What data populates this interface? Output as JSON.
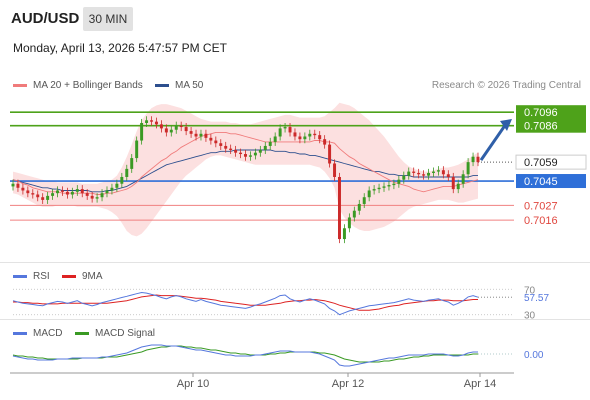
{
  "header": {
    "pair": "AUD/USD",
    "timeframe": "30 MIN",
    "datetime": "Monday, April 13, 2026 5:47:57 PM CET"
  },
  "legends": {
    "ma20": "MA 20 + Bollinger Bands",
    "ma50": "MA 50",
    "credit": "Research © 2026 Trading Central",
    "rsi": "RSI",
    "rsi_ma": "9MA",
    "macd": "MACD",
    "macd_signal": "MACD Signal"
  },
  "colors": {
    "ma20": "#f07b7b",
    "ma50": "#2d4f8e",
    "band_fill": "#fbd6d6",
    "candle_up": "#3a9a24",
    "candle_down": "#cc2a2a",
    "resistance": "#4ea21a",
    "pivot": "#2e6fd8",
    "support": "#f08080",
    "rsi": "#5577dd",
    "rsi_ma": "#dd2222",
    "macd": "#5577dd",
    "macd_signal": "#3a9a24",
    "arrow": "#2f5fa8"
  },
  "chart_data": [
    {
      "type": "candlestick",
      "panel": "price",
      "ylim": [
        0.6985,
        0.7108
      ],
      "x_ticks": [
        "Apr 10",
        "Apr 12",
        "Apr 14"
      ],
      "levels": [
        {
          "label": "0.7096",
          "value": 0.7096,
          "kind": "resistance"
        },
        {
          "label": "0.7086",
          "value": 0.7086,
          "kind": "resistance"
        },
        {
          "label": "0.7059",
          "value": 0.7059,
          "kind": "last"
        },
        {
          "label": "0.7045",
          "value": 0.7045,
          "kind": "pivot"
        },
        {
          "label": "0.7027",
          "value": 0.7027,
          "kind": "support"
        },
        {
          "label": "0.7016",
          "value": 0.7016,
          "kind": "support"
        }
      ],
      "close": [
        0.7043,
        0.704,
        0.7038,
        0.7036,
        0.7035,
        0.7033,
        0.7031,
        0.7034,
        0.7036,
        0.7038,
        0.7037,
        0.7035,
        0.7037,
        0.7039,
        0.7036,
        0.7034,
        0.7032,
        0.7033,
        0.7036,
        0.7038,
        0.704,
        0.7043,
        0.7048,
        0.7054,
        0.7062,
        0.7075,
        0.7088,
        0.709,
        0.7089,
        0.7087,
        0.7084,
        0.7081,
        0.7083,
        0.7086,
        0.7085,
        0.7082,
        0.708,
        0.7078,
        0.708,
        0.7077,
        0.7075,
        0.7073,
        0.7071,
        0.7069,
        0.7068,
        0.7066,
        0.7065,
        0.7063,
        0.7064,
        0.7066,
        0.7068,
        0.7071,
        0.7074,
        0.7078,
        0.7084,
        0.7085,
        0.7081,
        0.7078,
        0.7076,
        0.7078,
        0.708,
        0.7079,
        0.7076,
        0.7072,
        0.7058,
        0.7048,
        0.7002,
        0.701,
        0.7018,
        0.7023,
        0.7028,
        0.7033,
        0.7038,
        0.7039,
        0.704,
        0.7041,
        0.7042,
        0.7043,
        0.7046,
        0.7049,
        0.7052,
        0.7051,
        0.705,
        0.7049,
        0.7051,
        0.7052,
        0.7053,
        0.705,
        0.7048,
        0.7039,
        0.7043,
        0.705,
        0.7059,
        0.7063,
        0.7059
      ],
      "ma20": [
        0.7046,
        0.7045,
        0.7043,
        0.7042,
        0.704,
        0.7039,
        0.7038,
        0.7037,
        0.7037,
        0.7037,
        0.7036,
        0.7036,
        0.7036,
        0.7036,
        0.7036,
        0.7036,
        0.7036,
        0.7035,
        0.7035,
        0.7036,
        0.7036,
        0.7037,
        0.7038,
        0.7039,
        0.7041,
        0.7044,
        0.7048,
        0.7051,
        0.7054,
        0.7057,
        0.706,
        0.7062,
        0.7065,
        0.7067,
        0.707,
        0.7072,
        0.7074,
        0.7076,
        0.7078,
        0.7079,
        0.708,
        0.7081,
        0.7081,
        0.7081,
        0.708,
        0.708,
        0.7079,
        0.7078,
        0.7077,
        0.7076,
        0.7075,
        0.7074,
        0.7074,
        0.7074,
        0.7074,
        0.7074,
        0.7074,
        0.7074,
        0.7074,
        0.7074,
        0.7074,
        0.7075,
        0.7075,
        0.7074,
        0.7074,
        0.7073,
        0.7069,
        0.7066,
        0.7063,
        0.7061,
        0.7058,
        0.7056,
        0.7054,
        0.7052,
        0.705,
        0.7048,
        0.7046,
        0.7044,
        0.7043,
        0.7042,
        0.7041,
        0.7039,
        0.7038,
        0.7037,
        0.7038,
        0.7039,
        0.704,
        0.7041,
        0.7041,
        0.7041,
        0.7042,
        0.7043,
        0.7044,
        0.7045,
        0.7046
      ],
      "bb_upper": [
        0.7052,
        0.7051,
        0.705,
        0.7049,
        0.7048,
        0.7047,
        0.7046,
        0.7045,
        0.7045,
        0.7044,
        0.7044,
        0.7044,
        0.7044,
        0.7044,
        0.7043,
        0.7043,
        0.7043,
        0.7043,
        0.7044,
        0.7045,
        0.7046,
        0.7049,
        0.7055,
        0.7063,
        0.7072,
        0.7082,
        0.709,
        0.7095,
        0.7099,
        0.7101,
        0.7102,
        0.7102,
        0.7101,
        0.71,
        0.7099,
        0.7097,
        0.7095,
        0.7093,
        0.7091,
        0.709,
        0.7089,
        0.7089,
        0.7089,
        0.7089,
        0.7088,
        0.7088,
        0.7087,
        0.7087,
        0.7087,
        0.7088,
        0.7089,
        0.709,
        0.7091,
        0.7092,
        0.7093,
        0.7094,
        0.7094,
        0.7093,
        0.7092,
        0.7092,
        0.7092,
        0.7092,
        0.7092,
        0.7093,
        0.7096,
        0.7099,
        0.7103,
        0.7102,
        0.7101,
        0.7099,
        0.7096,
        0.7093,
        0.709,
        0.7086,
        0.7082,
        0.7078,
        0.7073,
        0.7068,
        0.7063,
        0.7059,
        0.7056,
        0.7054,
        0.7053,
        0.7052,
        0.7052,
        0.7053,
        0.7054,
        0.7055,
        0.7055,
        0.7056,
        0.7057,
        0.7059,
        0.7061,
        0.7064,
        0.7066
      ],
      "bb_lower": [
        0.7036,
        0.7035,
        0.7033,
        0.7031,
        0.7029,
        0.7027,
        0.7026,
        0.7026,
        0.7026,
        0.7027,
        0.7027,
        0.7027,
        0.7027,
        0.7026,
        0.7026,
        0.7026,
        0.7026,
        0.7026,
        0.7025,
        0.7024,
        0.7022,
        0.7019,
        0.7014,
        0.7008,
        0.7005,
        0.7004,
        0.7006,
        0.701,
        0.7015,
        0.702,
        0.7025,
        0.703,
        0.7035,
        0.704,
        0.7045,
        0.7049,
        0.7052,
        0.7055,
        0.7058,
        0.7061,
        0.7063,
        0.7064,
        0.7064,
        0.7063,
        0.7062,
        0.7061,
        0.706,
        0.7059,
        0.7058,
        0.7057,
        0.7057,
        0.7057,
        0.7057,
        0.7057,
        0.7057,
        0.7057,
        0.7057,
        0.7057,
        0.7057,
        0.7057,
        0.7057,
        0.7056,
        0.7055,
        0.7052,
        0.7047,
        0.704,
        0.7024,
        0.7018,
        0.7014,
        0.7011,
        0.7009,
        0.7008,
        0.7008,
        0.7009,
        0.701,
        0.7011,
        0.7013,
        0.7015,
        0.7018,
        0.7021,
        0.7024,
        0.7026,
        0.7027,
        0.7028,
        0.7029,
        0.703,
        0.7031,
        0.7031,
        0.7031,
        0.703,
        0.7029,
        0.7029,
        0.703,
        0.7031,
        0.7032
      ],
      "ma50": [
        0.7046,
        0.7045,
        0.7044,
        0.7043,
        0.7042,
        0.7041,
        0.704,
        0.704,
        0.7039,
        0.7039,
        0.7038,
        0.7038,
        0.7038,
        0.7038,
        0.7038,
        0.7038,
        0.7037,
        0.7037,
        0.7037,
        0.7038,
        0.7038,
        0.7039,
        0.704,
        0.7041,
        0.7043,
        0.7045,
        0.7047,
        0.7049,
        0.7051,
        0.7053,
        0.7055,
        0.7057,
        0.7058,
        0.7059,
        0.706,
        0.7061,
        0.7062,
        0.7063,
        0.7064,
        0.7065,
        0.7066,
        0.7066,
        0.7067,
        0.7067,
        0.7067,
        0.7068,
        0.7068,
        0.7068,
        0.7068,
        0.7068,
        0.7068,
        0.7068,
        0.7068,
        0.7067,
        0.7067,
        0.7067,
        0.7066,
        0.7066,
        0.7065,
        0.7065,
        0.7064,
        0.7064,
        0.7063,
        0.7062,
        0.7061,
        0.706,
        0.7059,
        0.7058,
        0.7057,
        0.7056,
        0.7055,
        0.7054,
        0.7053,
        0.7052,
        0.7052,
        0.7051,
        0.705,
        0.705,
        0.7049,
        0.7049,
        0.7049,
        0.7048,
        0.7048,
        0.7048,
        0.7048,
        0.7048,
        0.7048,
        0.7048,
        0.7048,
        0.7048,
        0.7048,
        0.7048,
        0.7048,
        0.7049,
        0.7049
      ]
    },
    {
      "type": "line",
      "panel": "rsi",
      "ylim": [
        28,
        72
      ],
      "y_ticks": [
        "70",
        "30"
      ],
      "last_label": "57.57",
      "series": [
        {
          "name": "RSI",
          "values": [
            52,
            50,
            48,
            47,
            46,
            45,
            44,
            47,
            49,
            51,
            50,
            48,
            50,
            52,
            48,
            46,
            44,
            46,
            49,
            51,
            53,
            55,
            57,
            59,
            61,
            63,
            65,
            64,
            62,
            60,
            57,
            55,
            58,
            60,
            58,
            55,
            53,
            51,
            54,
            51,
            49,
            47,
            45,
            44,
            43,
            42,
            41,
            40,
            42,
            45,
            47,
            50,
            53,
            56,
            60,
            61,
            55,
            52,
            50,
            53,
            55,
            53,
            50,
            47,
            40,
            36,
            30,
            33,
            36,
            38,
            40,
            42,
            44,
            45,
            46,
            47,
            48,
            49,
            51,
            53,
            55,
            53,
            52,
            51,
            53,
            54,
            55,
            52,
            50,
            45,
            48,
            52,
            58,
            60,
            57.57
          ]
        },
        {
          "name": "9MA",
          "values": [
            50,
            50,
            49,
            49,
            48,
            48,
            47,
            47,
            47,
            47,
            48,
            48,
            48,
            48,
            48,
            48,
            48,
            48,
            48,
            48,
            49,
            50,
            51,
            52,
            54,
            56,
            58,
            59,
            60,
            61,
            60,
            60,
            60,
            60,
            59,
            58,
            57,
            56,
            56,
            55,
            54,
            53,
            51,
            50,
            49,
            48,
            47,
            46,
            45,
            45,
            45,
            45,
            46,
            47,
            48,
            50,
            51,
            52,
            52,
            53,
            53,
            54,
            53,
            52,
            50,
            48,
            45,
            43,
            41,
            39,
            37,
            37,
            37,
            38,
            39,
            41,
            43,
            44,
            45,
            47,
            48,
            49,
            50,
            51,
            52,
            52,
            53,
            53,
            53,
            52,
            52,
            52,
            53,
            54,
            54
          ]
        }
      ]
    },
    {
      "type": "line",
      "panel": "macd",
      "ylim": [
        -0.0016,
        0.0012
      ],
      "last_label": "0.00",
      "series": [
        {
          "name": "MACD",
          "values": [
            -0.0002,
            -0.0003,
            -0.0004,
            -0.0005,
            -0.0005,
            -0.0006,
            -0.0006,
            -0.0006,
            -0.0006,
            -0.0005,
            -0.0005,
            -0.0005,
            -0.0004,
            -0.0004,
            -0.0004,
            -0.0004,
            -0.0004,
            -0.0004,
            -0.0003,
            -0.0003,
            -0.0002,
            -0.0001,
            0.0,
            0.0001,
            0.0003,
            0.0005,
            0.0007,
            0.0008,
            0.0009,
            0.0009,
            0.0009,
            0.0008,
            0.0008,
            0.0008,
            0.0007,
            0.0006,
            0.0005,
            0.0004,
            0.0004,
            0.0003,
            0.0002,
            0.0001,
            0.0,
            -0.0001,
            -0.0001,
            -0.0002,
            -0.0002,
            -0.0002,
            -0.0002,
            -0.0001,
            -0.0001,
            0.0,
            0.0001,
            0.0002,
            0.0003,
            0.0003,
            0.0003,
            0.0002,
            0.0002,
            0.0002,
            0.0002,
            0.0001,
            0.0,
            -0.0002,
            -0.0004,
            -0.0006,
            -0.0011,
            -0.0012,
            -0.0012,
            -0.0011,
            -0.001,
            -0.0009,
            -0.0008,
            -0.0007,
            -0.0006,
            -0.0005,
            -0.0004,
            -0.0004,
            -0.0003,
            -0.0002,
            -0.0001,
            -0.0001,
            -0.0001,
            -0.0001,
            0.0,
            0.0,
            0.0,
            0.0,
            -0.0001,
            -0.0002,
            -0.0002,
            -0.0001,
            0.0001,
            0.0002,
            0.0002
          ]
        },
        {
          "name": "MACD Signal",
          "values": [
            -0.0001,
            -0.0002,
            -0.0002,
            -0.0003,
            -0.0003,
            -0.0004,
            -0.0004,
            -0.0005,
            -0.0005,
            -0.0005,
            -0.0005,
            -0.0005,
            -0.0005,
            -0.0005,
            -0.0004,
            -0.0004,
            -0.0004,
            -0.0004,
            -0.0004,
            -0.0003,
            -0.0003,
            -0.0003,
            -0.0002,
            -0.0001,
            0.0,
            0.0001,
            0.0002,
            0.0004,
            0.0005,
            0.0006,
            0.0007,
            0.0007,
            0.0008,
            0.0008,
            0.0008,
            0.0007,
            0.0007,
            0.0006,
            0.0006,
            0.0005,
            0.0004,
            0.0004,
            0.0003,
            0.0002,
            0.0001,
            0.0001,
            0.0,
            0.0,
            -0.0001,
            -0.0001,
            -0.0001,
            -0.0001,
            0.0,
            0.0,
            0.0001,
            0.0001,
            0.0002,
            0.0002,
            0.0002,
            0.0002,
            0.0002,
            0.0002,
            0.0001,
            0.0001,
            0.0,
            -0.0001,
            -0.0003,
            -0.0005,
            -0.0006,
            -0.0007,
            -0.0008,
            -0.0008,
            -0.0008,
            -0.0008,
            -0.0008,
            -0.0007,
            -0.0007,
            -0.0006,
            -0.0005,
            -0.0005,
            -0.0004,
            -0.0003,
            -0.0003,
            -0.0002,
            -0.0002,
            -0.0001,
            -0.0001,
            -0.0001,
            -0.0001,
            -0.0001,
            -0.0001,
            -0.0001,
            -0.0001,
            0.0,
            0.0
          ]
        }
      ]
    }
  ]
}
